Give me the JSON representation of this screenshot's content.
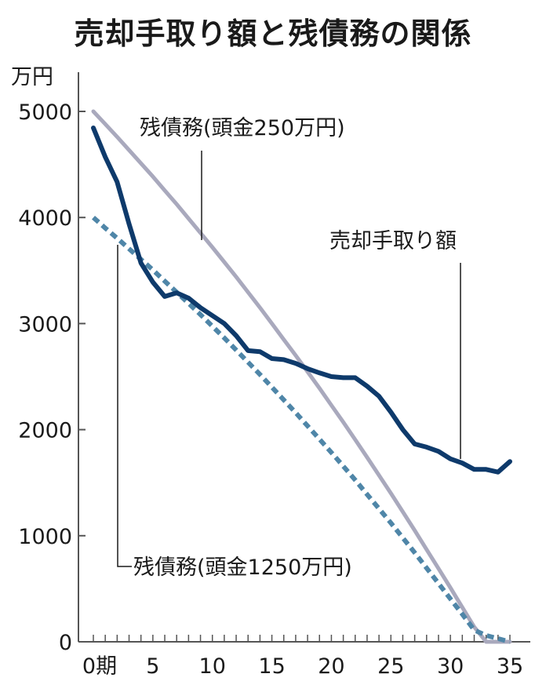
{
  "chart_data": {
    "type": "line",
    "title": "売却手取り額と残債務の関係",
    "xlabel": "期",
    "ylabel": "万円",
    "ylim": [
      0,
      5000
    ],
    "xlim": [
      0,
      35
    ],
    "yticks": [
      0,
      1000,
      2000,
      3000,
      4000,
      5000
    ],
    "ytick_labels": [
      "0",
      "1000",
      "2000",
      "3000",
      "4000",
      "5000"
    ],
    "xticks": [
      0,
      5,
      10,
      15,
      20,
      25,
      30,
      35
    ],
    "xtick_labels": [
      "0期",
      "5",
      "10",
      "15",
      "20",
      "25",
      "30",
      "35"
    ],
    "grid": false,
    "legend": "inline annotations",
    "x": [
      0,
      1,
      2,
      3,
      4,
      5,
      6,
      7,
      8,
      9,
      10,
      11,
      12,
      13,
      14,
      15,
      16,
      17,
      18,
      19,
      20,
      21,
      22,
      23,
      24,
      25,
      26,
      27,
      28,
      29,
      30,
      31,
      32,
      33,
      34,
      35
    ],
    "series": [
      {
        "name": "売却手取り額",
        "color": "#0e3a6b",
        "style": "solid",
        "values": [
          4845,
          4570,
          4335,
          3940,
          3570,
          3390,
          3255,
          3290,
          3240,
          3150,
          3075,
          3000,
          2885,
          2745,
          2735,
          2670,
          2660,
          2625,
          2575,
          2535,
          2500,
          2490,
          2490,
          2410,
          2315,
          2165,
          2000,
          1865,
          1835,
          1795,
          1725,
          1685,
          1625,
          1625,
          1600,
          1700
        ]
      },
      {
        "name": "残債務(頭金250万円)",
        "color": "#a9a9bd",
        "style": "solid",
        "values": [
          5000,
          4880,
          4760,
          4635,
          4510,
          4385,
          4255,
          4125,
          3990,
          3855,
          3720,
          3580,
          3440,
          3295,
          3150,
          3000,
          2850,
          2700,
          2545,
          2390,
          2230,
          2070,
          1905,
          1740,
          1570,
          1400,
          1225,
          1050,
          870,
          690,
          510,
          325,
          140,
          -30,
          0,
          0
        ]
      },
      {
        "name": "残債務(頭金1250万円)",
        "color": "#4f86a8",
        "style": "dashed",
        "values": [
          4000,
          3900,
          3805,
          3705,
          3605,
          3505,
          3400,
          3295,
          3190,
          3085,
          2975,
          2865,
          2750,
          2635,
          2520,
          2400,
          2280,
          2160,
          2035,
          1910,
          1785,
          1655,
          1525,
          1390,
          1255,
          1120,
          980,
          840,
          695,
          550,
          405,
          260,
          110,
          60,
          30,
          0
        ]
      }
    ],
    "annotations": [
      {
        "text": "残債務(頭金250万円)",
        "target": "残債務(頭金250万円)"
      },
      {
        "text": "売却手取り額",
        "target": "売却手取り額"
      },
      {
        "text": "残債務(頭金1250万円)",
        "target": "残債務(頭金1250万円)"
      }
    ]
  },
  "labels": {
    "title": "売却手取り額と残債務の関係",
    "unit": "万円",
    "ann_250": "残債務(頭金250万円)",
    "ann_sale": "売却手取り額",
    "ann_1250": "残債務(頭金1250万円)"
  }
}
